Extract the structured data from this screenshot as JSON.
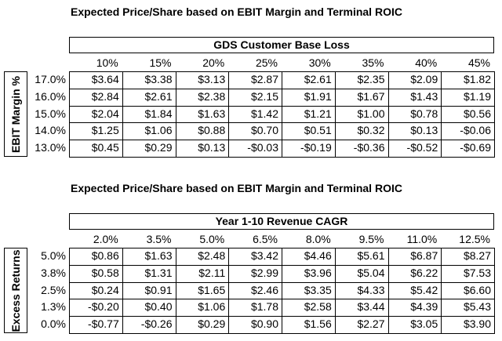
{
  "tables": [
    {
      "title": "Expected Price/Share based on EBIT Margin and Terminal ROIC",
      "banner": "GDS Customer Base Loss",
      "y_axis_label": "EBIT Margin %",
      "columns": [
        "10%",
        "15%",
        "20%",
        "25%",
        "30%",
        "35%",
        "40%",
        "45%"
      ],
      "rows": [
        {
          "label": "17.0%",
          "values": [
            "$3.64",
            "$3.38",
            "$3.13",
            "$2.87",
            "$2.61",
            "$2.35",
            "$2.09",
            "$1.82"
          ]
        },
        {
          "label": "16.0%",
          "values": [
            "$2.84",
            "$2.61",
            "$2.38",
            "$2.15",
            "$1.91",
            "$1.67",
            "$1.43",
            "$1.19"
          ]
        },
        {
          "label": "15.0%",
          "values": [
            "$2.04",
            "$1.84",
            "$1.63",
            "$1.42",
            "$1.21",
            "$1.00",
            "$0.78",
            "$0.56"
          ]
        },
        {
          "label": "14.0%",
          "values": [
            "$1.25",
            "$1.06",
            "$0.88",
            "$0.70",
            "$0.51",
            "$0.32",
            "$0.13",
            "-$0.06"
          ]
        },
        {
          "label": "13.0%",
          "values": [
            "$0.45",
            "$0.29",
            "$0.13",
            "-$0.03",
            "-$0.19",
            "-$0.36",
            "-$0.52",
            "-$0.69"
          ]
        }
      ]
    },
    {
      "title": "Expected Price/Share based on EBIT Margin and Terminal ROIC",
      "banner": "Year 1-10 Revenue CAGR",
      "y_axis_label": "Excess Returns",
      "columns": [
        "2.0%",
        "3.5%",
        "5.0%",
        "6.5%",
        "8.0%",
        "9.5%",
        "11.0%",
        "12.5%"
      ],
      "rows": [
        {
          "label": "5.0%",
          "values": [
            "$0.86",
            "$1.63",
            "$2.48",
            "$3.42",
            "$4.46",
            "$5.61",
            "$6.87",
            "$8.27"
          ]
        },
        {
          "label": "3.8%",
          "values": [
            "$0.58",
            "$1.31",
            "$2.11",
            "$2.99",
            "$3.96",
            "$5.04",
            "$6.22",
            "$7.53"
          ]
        },
        {
          "label": "2.5%",
          "values": [
            "$0.24",
            "$0.91",
            "$1.65",
            "$2.46",
            "$3.35",
            "$4.33",
            "$5.42",
            "$6.60"
          ]
        },
        {
          "label": "1.3%",
          "values": [
            "-$0.20",
            "$0.40",
            "$1.06",
            "$1.78",
            "$2.58",
            "$3.44",
            "$4.39",
            "$5.43"
          ]
        },
        {
          "label": "0.0%",
          "values": [
            "-$0.77",
            "-$0.26",
            "$0.29",
            "$0.90",
            "$1.56",
            "$2.27",
            "$3.05",
            "$3.90"
          ]
        }
      ]
    }
  ]
}
